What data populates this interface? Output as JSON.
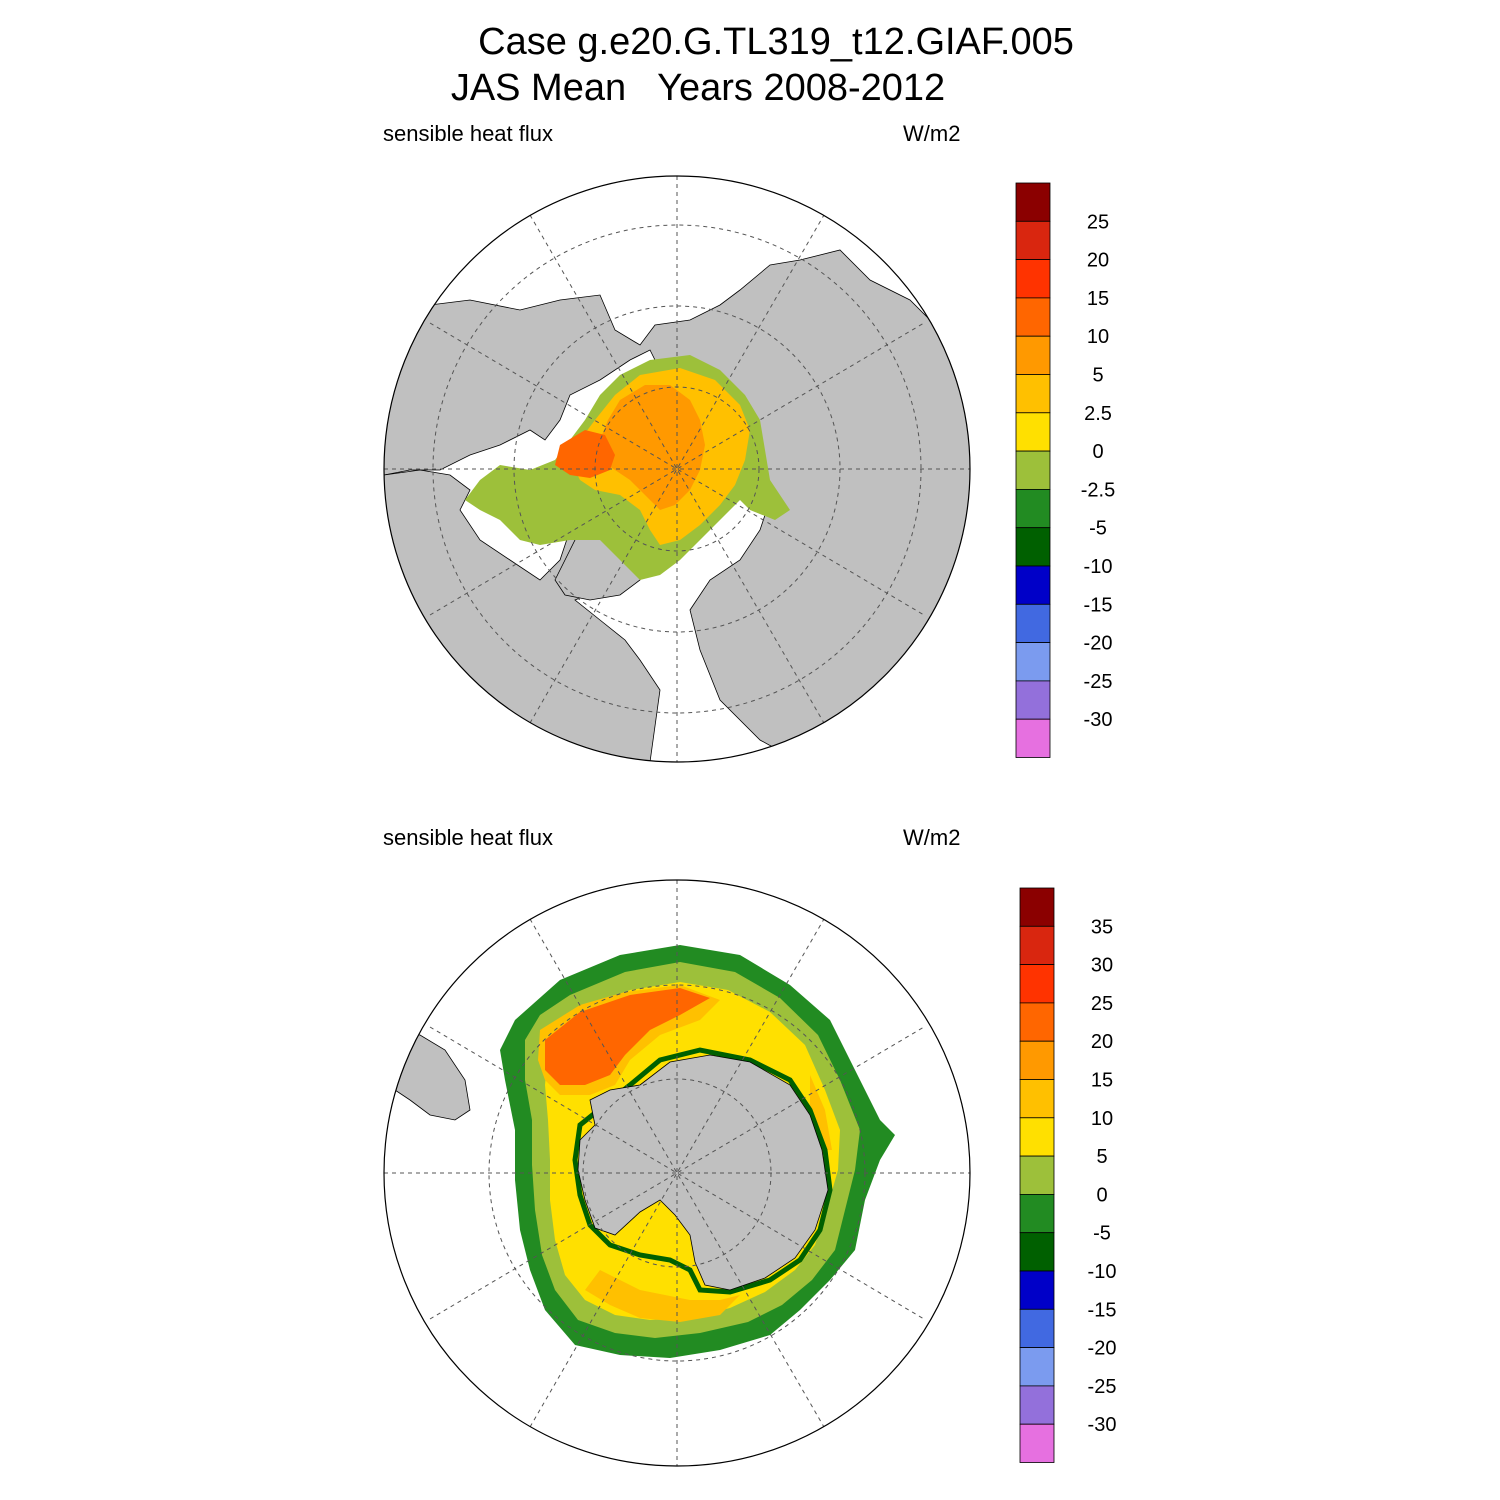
{
  "title_line1": "Case g.e20.G.TL319_t12.GIAF.005",
  "title_line2": "JAS Mean   Years 2008-2012",
  "panels": [
    {
      "variable": "sensible heat flux",
      "units": "W/m2",
      "hemisphere": "north",
      "colorbar_labels": [
        "25",
        "20",
        "15",
        "10",
        "5",
        "2.5",
        "0",
        "-2.5",
        "-5",
        "-10",
        "-15",
        "-20",
        "-25",
        "-30"
      ]
    },
    {
      "variable": "sensible heat flux",
      "units": "W/m2",
      "hemisphere": "south",
      "colorbar_labels": [
        "35",
        "30",
        "25",
        "20",
        "15",
        "10",
        "5",
        "0",
        "-5",
        "-10",
        "-15",
        "-20",
        "-25",
        "-30"
      ]
    }
  ],
  "colorbar_colors": [
    "#8b0000",
    "#d9260f",
    "#ff3300",
    "#ff6600",
    "#ff9900",
    "#ffc000",
    "#ffe000",
    "#9dc03a",
    "#228b22",
    "#006000",
    "#0000c8",
    "#4169e1",
    "#7b9bef",
    "#9370db",
    "#e670e0"
  ],
  "colors": {
    "land": "#c0c0c0",
    "no_data": "#ffffff",
    "grid": "#555555"
  }
}
